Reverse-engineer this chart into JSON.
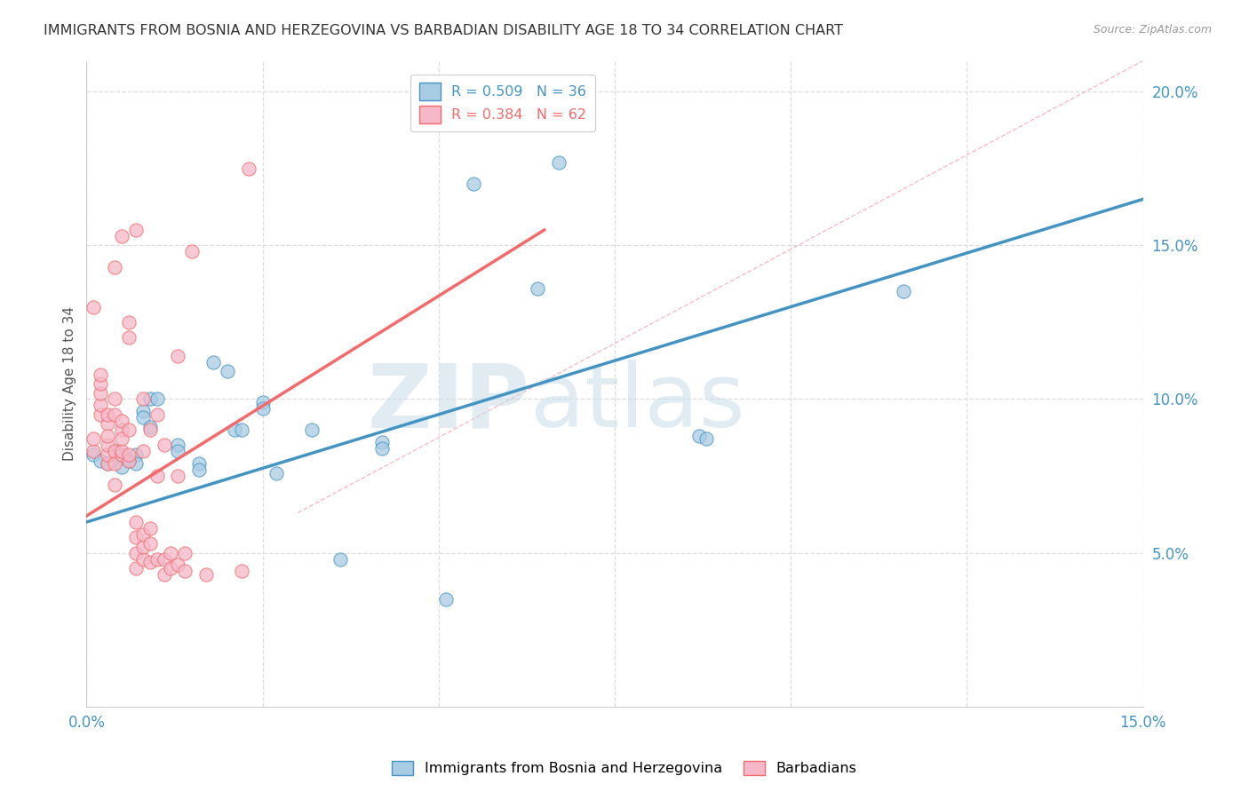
{
  "title": "IMMIGRANTS FROM BOSNIA AND HERZEGOVINA VS BARBADIAN DISABILITY AGE 18 TO 34 CORRELATION CHART",
  "source": "Source: ZipAtlas.com",
  "ylabel": "Disability Age 18 to 34",
  "x_min": 0.0,
  "x_max": 0.15,
  "y_min": 0.0,
  "y_max": 0.21,
  "x_ticks": [
    0.0,
    0.025,
    0.05,
    0.075,
    0.1,
    0.125,
    0.15
  ],
  "y_ticks_right": [
    0.05,
    0.1,
    0.15,
    0.2
  ],
  "y_tick_labels_right": [
    "5.0%",
    "10.0%",
    "15.0%",
    "20.0%"
  ],
  "legend_r1": "R = 0.509",
  "legend_n1": "N = 36",
  "legend_r2": "R = 0.384",
  "legend_n2": "N = 62",
  "color_blue": "#a8cce4",
  "color_pink": "#f5b8c8",
  "color_blue_line": "#4393c3",
  "color_pink_line": "#f4696b",
  "watermark_zip": "ZIP",
  "watermark_atlas": "atlas",
  "blue_scatter": [
    [
      0.001,
      0.082
    ],
    [
      0.002,
      0.08
    ],
    [
      0.003,
      0.079
    ],
    [
      0.004,
      0.083
    ],
    [
      0.005,
      0.081
    ],
    [
      0.005,
      0.078
    ],
    [
      0.006,
      0.08
    ],
    [
      0.007,
      0.082
    ],
    [
      0.007,
      0.079
    ],
    [
      0.008,
      0.096
    ],
    [
      0.008,
      0.094
    ],
    [
      0.009,
      0.091
    ],
    [
      0.009,
      0.1
    ],
    [
      0.01,
      0.1
    ],
    [
      0.013,
      0.085
    ],
    [
      0.013,
      0.083
    ],
    [
      0.016,
      0.079
    ],
    [
      0.016,
      0.077
    ],
    [
      0.018,
      0.112
    ],
    [
      0.02,
      0.109
    ],
    [
      0.021,
      0.09
    ],
    [
      0.022,
      0.09
    ],
    [
      0.025,
      0.099
    ],
    [
      0.025,
      0.097
    ],
    [
      0.027,
      0.076
    ],
    [
      0.032,
      0.09
    ],
    [
      0.036,
      0.048
    ],
    [
      0.042,
      0.086
    ],
    [
      0.042,
      0.084
    ],
    [
      0.051,
      0.035
    ],
    [
      0.055,
      0.17
    ],
    [
      0.064,
      0.136
    ],
    [
      0.067,
      0.177
    ],
    [
      0.087,
      0.088
    ],
    [
      0.088,
      0.087
    ],
    [
      0.116,
      0.135
    ]
  ],
  "pink_scatter": [
    [
      0.001,
      0.083
    ],
    [
      0.001,
      0.087
    ],
    [
      0.001,
      0.13
    ],
    [
      0.002,
      0.095
    ],
    [
      0.002,
      0.098
    ],
    [
      0.002,
      0.102
    ],
    [
      0.002,
      0.105
    ],
    [
      0.002,
      0.108
    ],
    [
      0.003,
      0.079
    ],
    [
      0.003,
      0.082
    ],
    [
      0.003,
      0.085
    ],
    [
      0.003,
      0.092
    ],
    [
      0.003,
      0.095
    ],
    [
      0.004,
      0.079
    ],
    [
      0.004,
      0.083
    ],
    [
      0.004,
      0.095
    ],
    [
      0.004,
      0.1
    ],
    [
      0.004,
      0.143
    ],
    [
      0.005,
      0.082
    ],
    [
      0.005,
      0.083
    ],
    [
      0.005,
      0.09
    ],
    [
      0.005,
      0.093
    ],
    [
      0.005,
      0.153
    ],
    [
      0.006,
      0.08
    ],
    [
      0.006,
      0.082
    ],
    [
      0.006,
      0.12
    ],
    [
      0.006,
      0.125
    ],
    [
      0.007,
      0.045
    ],
    [
      0.007,
      0.05
    ],
    [
      0.007,
      0.055
    ],
    [
      0.007,
      0.06
    ],
    [
      0.007,
      0.155
    ],
    [
      0.008,
      0.048
    ],
    [
      0.008,
      0.052
    ],
    [
      0.008,
      0.056
    ],
    [
      0.008,
      0.083
    ],
    [
      0.008,
      0.1
    ],
    [
      0.009,
      0.047
    ],
    [
      0.009,
      0.053
    ],
    [
      0.009,
      0.058
    ],
    [
      0.009,
      0.09
    ],
    [
      0.01,
      0.048
    ],
    [
      0.01,
      0.075
    ],
    [
      0.01,
      0.095
    ],
    [
      0.011,
      0.043
    ],
    [
      0.011,
      0.048
    ],
    [
      0.011,
      0.085
    ],
    [
      0.012,
      0.045
    ],
    [
      0.012,
      0.05
    ],
    [
      0.013,
      0.046
    ],
    [
      0.013,
      0.075
    ],
    [
      0.013,
      0.114
    ],
    [
      0.014,
      0.044
    ],
    [
      0.014,
      0.05
    ],
    [
      0.015,
      0.148
    ],
    [
      0.017,
      0.043
    ],
    [
      0.022,
      0.044
    ],
    [
      0.023,
      0.175
    ],
    [
      0.003,
      0.088
    ],
    [
      0.005,
      0.087
    ],
    [
      0.006,
      0.09
    ],
    [
      0.004,
      0.072
    ]
  ],
  "blue_line_x": [
    0.0,
    0.15
  ],
  "blue_line_y": [
    0.06,
    0.165
  ],
  "pink_line_x": [
    0.0,
    0.065
  ],
  "pink_line_y": [
    0.062,
    0.155
  ],
  "diag_line_x": [
    0.03,
    0.15
  ],
  "diag_line_y": [
    0.063,
    0.21
  ],
  "background_color": "#ffffff",
  "grid_color": "#dddddd",
  "axis_label_color": "#4393c3",
  "title_fontsize": 11.5,
  "source_fontsize": 9
}
